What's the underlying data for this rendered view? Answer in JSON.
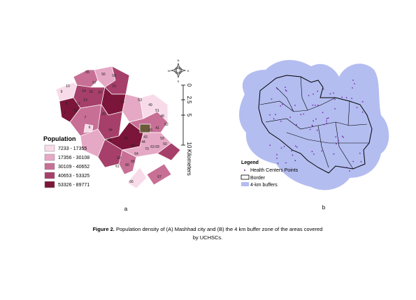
{
  "map_a": {
    "panel_label": "a",
    "legend_title": "Population",
    "classes": [
      {
        "label": "7233 - 17355",
        "color": "#f8dbe9"
      },
      {
        "label": "17356 - 30108",
        "color": "#e5a9c5"
      },
      {
        "label": "30109 - 40652",
        "color": "#c86f95"
      },
      {
        "label": "40653 - 53325",
        "color": "#a6406b"
      },
      {
        "label": "53326 - 89771",
        "color": "#7b1539"
      }
    ],
    "scale": {
      "ticks": [
        "0",
        "2.5",
        "5",
        "10"
      ],
      "unit": "Kilometers"
    },
    "compass": {
      "n": "N",
      "e": "E",
      "s": "S",
      "w": "W"
    },
    "region_labels": [
      "55",
      "56",
      "57",
      "58",
      "10",
      "9",
      "14",
      "16",
      "22",
      "8",
      "13",
      "12",
      "11",
      "1",
      "20",
      "6",
      "7",
      "34",
      "36",
      "30",
      "44",
      "42",
      "43",
      "45",
      "41",
      "51",
      "53",
      "49",
      "48",
      "59",
      "63",
      "64",
      "65",
      "66",
      "67",
      "60",
      "61",
      "62",
      "70",
      "69",
      "50",
      "23",
      "24",
      "52"
    ]
  },
  "map_b": {
    "panel_label": "b",
    "legend_title": "Legend",
    "items": [
      "Health Centers Points",
      "Border",
      "4-km buffers"
    ]
  },
  "caption": {
    "bold": "Figure 2.",
    "text": " Population density of (A) Mashhad city and (B) the 4 km buffer zone of the areas covered",
    "line2": "by UCHSCs."
  }
}
